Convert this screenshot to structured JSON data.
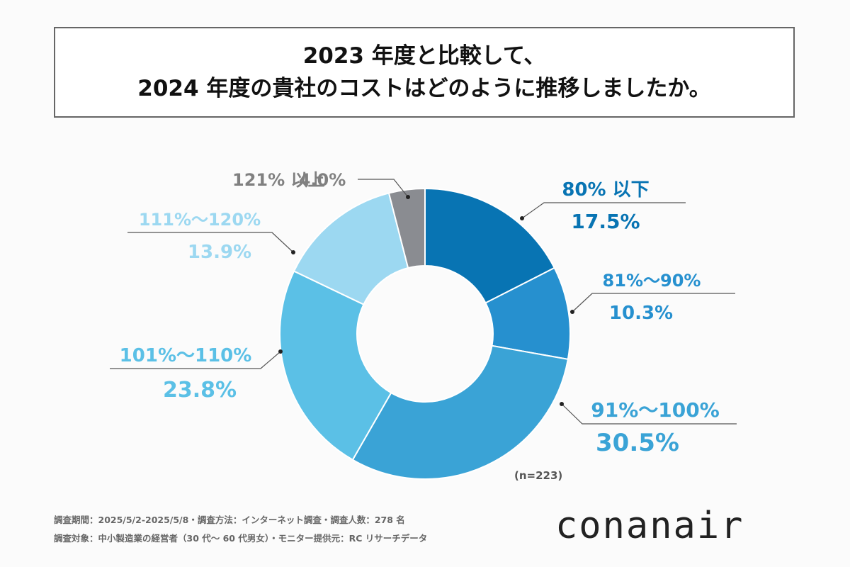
{
  "title": {
    "line1": "2023 年度と比較して、",
    "line2": "2024 年度の貴社のコストはどのように推移しましたか。"
  },
  "chart_data": {
    "type": "pie",
    "variant": "donut",
    "title": "2023 年度と比較して、2024 年度の貴社のコストはどのように推移しましたか。",
    "unit": "%",
    "n_label": "(n=223)",
    "slices": [
      {
        "label": "80% 以下",
        "value": 17.5,
        "value_label": "17.5%",
        "color": "#0874b3",
        "label_color": "#0874b3"
      },
      {
        "label": "81%～90%",
        "value": 10.3,
        "value_label": "10.3%",
        "color": "#2690cf",
        "label_color": "#2690cf"
      },
      {
        "label": "91%～100%",
        "value": 30.5,
        "value_label": "30.5%",
        "color": "#3aa3d6",
        "label_color": "#3aa3d6"
      },
      {
        "label": "101%～110%",
        "value": 23.8,
        "value_label": "23.8%",
        "color": "#5bc0e6",
        "label_color": "#5bc0e6"
      },
      {
        "label": "111%～120%",
        "value": 13.9,
        "value_label": "13.9%",
        "color": "#9cd8f1",
        "label_color": "#9cd8f1"
      },
      {
        "label": "121% 以上",
        "value": 4.0,
        "value_label": "4.0%",
        "color": "#8a8c91",
        "label_color": "#808080"
      }
    ]
  },
  "footer": {
    "line1": "調査期間：2025/5/2-2025/5/8・調査方法：インターネット調査・調査人数：278 名",
    "line2": "調査対象：中小製造業の経営者（30 代～ 60 代男女）・モニター提供元：RC リサーチデータ"
  },
  "brand": "conanair"
}
